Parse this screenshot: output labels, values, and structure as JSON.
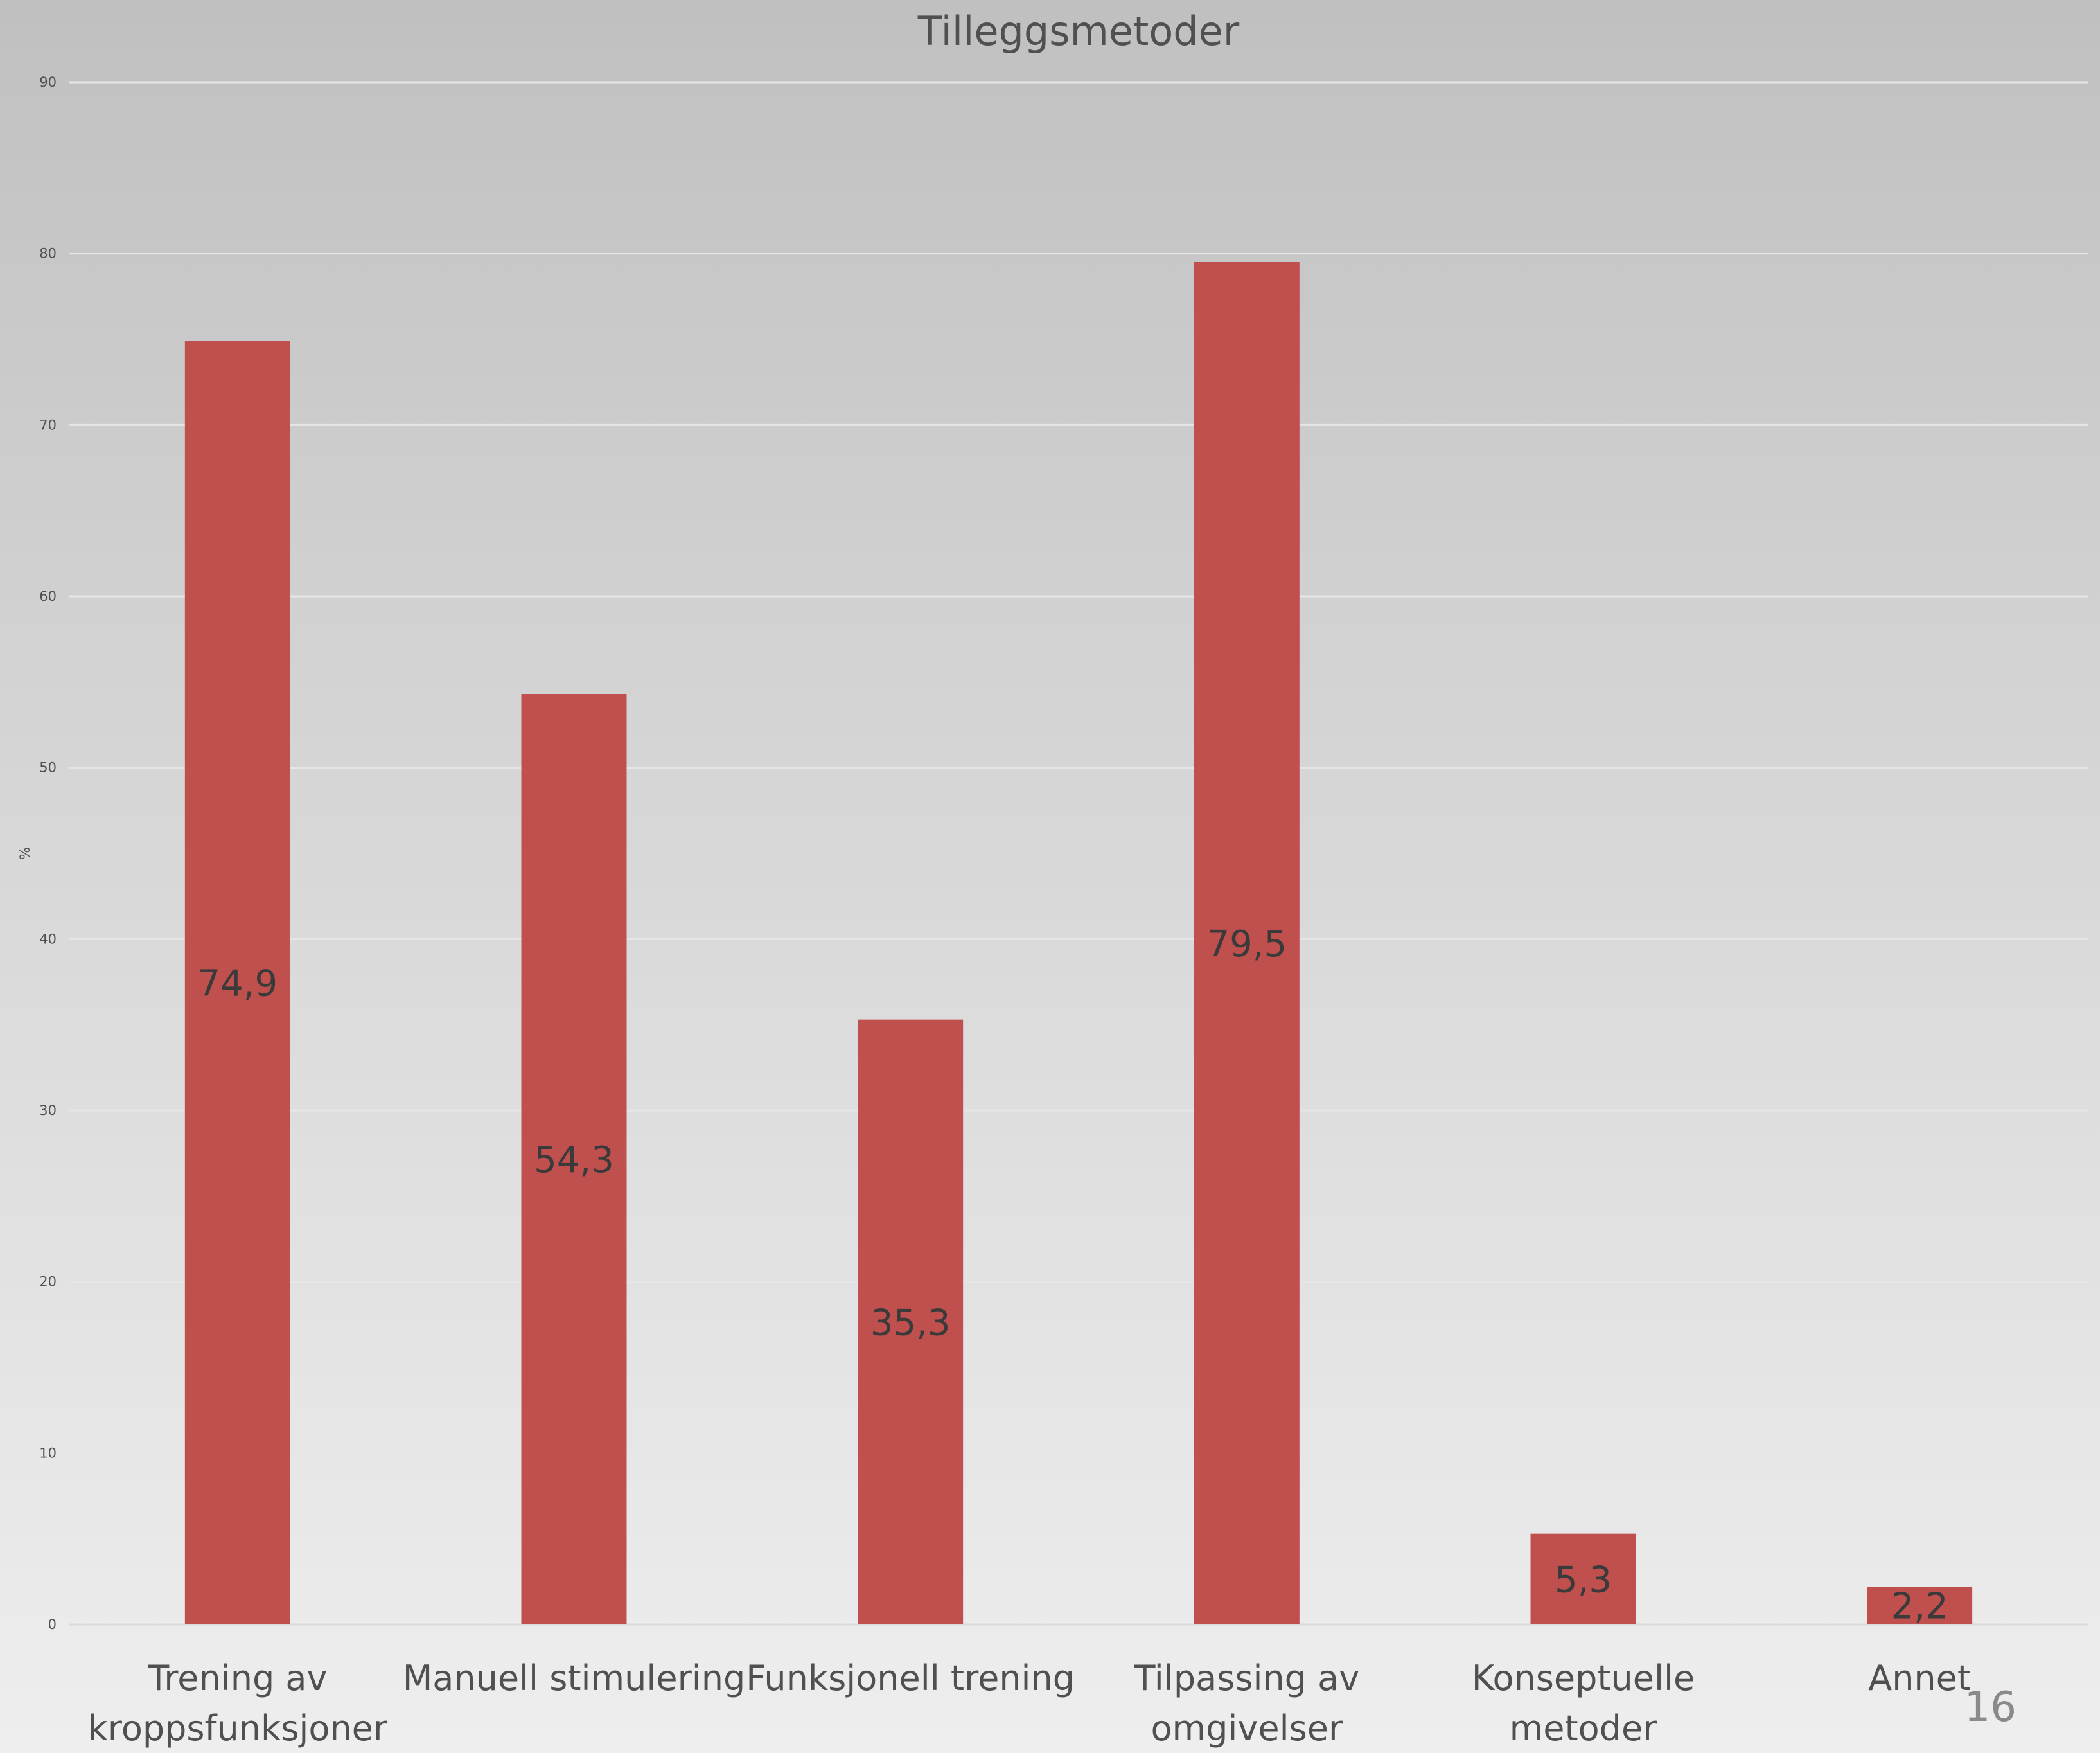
{
  "chart_data": {
    "type": "bar",
    "title": "Tilleggsmetoder",
    "ylabel": "%",
    "xlabel": "",
    "ylim": [
      0,
      90
    ],
    "yticks": [
      0,
      10,
      20,
      30,
      40,
      50,
      60,
      70,
      80,
      90
    ],
    "grid": true,
    "legend": "none",
    "bar_color": "#c0504d",
    "categories": [
      [
        "Trening av",
        "kroppsfunksjoner"
      ],
      [
        "Manuell stimulering"
      ],
      [
        "Funksjonell trening"
      ],
      [
        "Tilpassing av",
        "omgivelser"
      ],
      [
        "Konseptuelle",
        "metoder"
      ],
      [
        "Annet"
      ]
    ],
    "values": [
      74.9,
      54.3,
      35.3,
      79.5,
      5.3,
      2.2
    ],
    "value_labels": [
      "74,9",
      "54,3",
      "35,3",
      "79,5",
      "5,3",
      "2,2"
    ]
  },
  "page_number": "16"
}
